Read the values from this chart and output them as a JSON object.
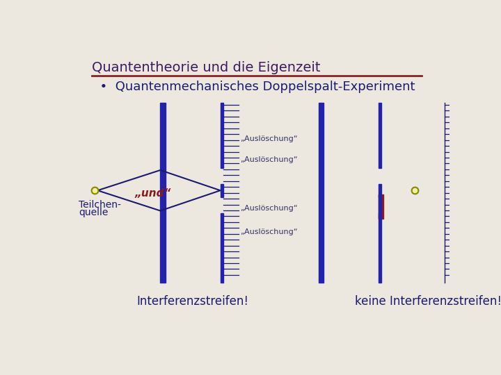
{
  "bg_color": "#ece8df",
  "title": "Quantentheorie und die Eigenzeit",
  "title_color": "#3d1a5e",
  "title_underline_color": "#8b2020",
  "subtitle": "  •  Quantenmechanisches Doppelspalt-Experiment",
  "subtitle_color": "#1a1a6e",
  "blue_color": "#2222aa",
  "dark_blue": "#1a1a6e",
  "red_color": "#8b1a1a",
  "ausl_color": "#333366",
  "und_color": "#8b1a1a",
  "label_color": "#1a1a6e",
  "bottom_label1": "Interferenzstreifen!",
  "bottom_label2": "keine Interferenzstreifen!",
  "ausl_text": "„Auslöschung“",
  "und_text": "„und“",
  "teilchen_text1": "Teilchen-",
  "teilchen_text2": "quelle"
}
